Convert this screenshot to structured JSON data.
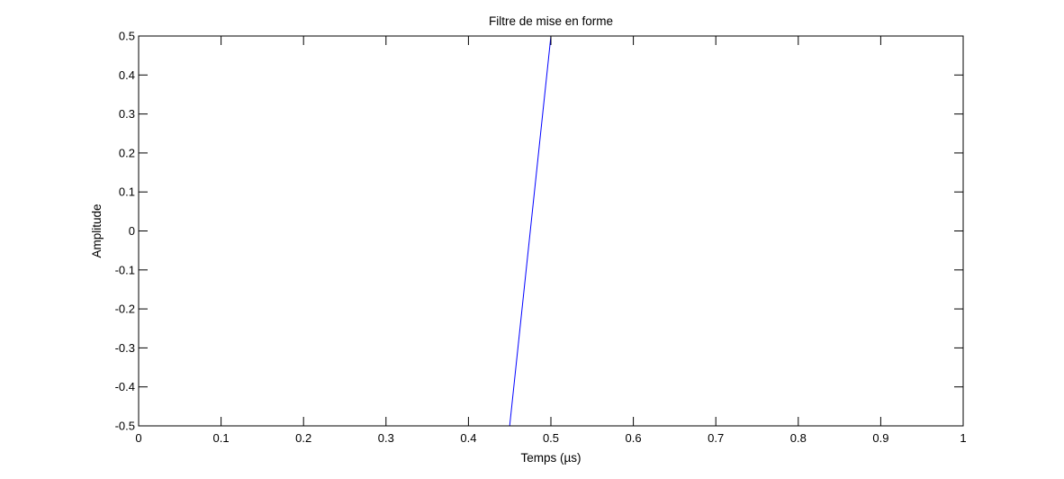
{
  "chart_data": {
    "type": "line",
    "title": "Filtre de mise en forme",
    "xlabel": "Temps (µs)",
    "ylabel": "Amplitude",
    "xlim": [
      0,
      1
    ],
    "ylim": [
      -0.5,
      0.5
    ],
    "xticks": [
      0,
      0.1,
      0.2,
      0.3,
      0.4,
      0.5,
      0.6,
      0.7,
      0.8,
      0.9,
      1
    ],
    "xtick_labels": [
      "0",
      "0.1",
      "0.2",
      "0.3",
      "0.4",
      "0.5",
      "0.6",
      "0.7",
      "0.8",
      "0.9",
      "1"
    ],
    "yticks": [
      -0.5,
      -0.4,
      -0.3,
      -0.2,
      -0.1,
      0,
      0.1,
      0.2,
      0.3,
      0.4,
      0.5
    ],
    "ytick_labels": [
      "-0.5",
      "-0.4",
      "-0.3",
      "-0.2",
      "-0.1",
      "0",
      "0.1",
      "0.2",
      "0.3",
      "0.4",
      "0.5"
    ],
    "grid": false,
    "legend": "none",
    "series": [
      {
        "color": "#0000ff",
        "x": [
          0.45,
          0.5
        ],
        "y": [
          -0.5,
          0.5
        ]
      }
    ]
  }
}
